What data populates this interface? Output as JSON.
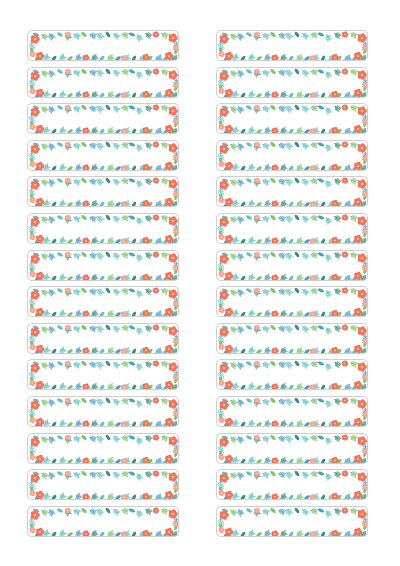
{
  "sheet": {
    "columns": 2,
    "rows": 14,
    "label_count": 28,
    "border_motif": "tropical-floral",
    "colors": {
      "hibiscus": "#f2715f",
      "hibiscus_light": "#f7a492",
      "flower_center": "#f5d76e",
      "palm_teal": "#5cc3c6",
      "palm_blue": "#4a9fc9",
      "monstera_green": "#7cc36a",
      "leaf_dark": "#3e8f7a",
      "label_outline": "#cfcfcf"
    }
  }
}
